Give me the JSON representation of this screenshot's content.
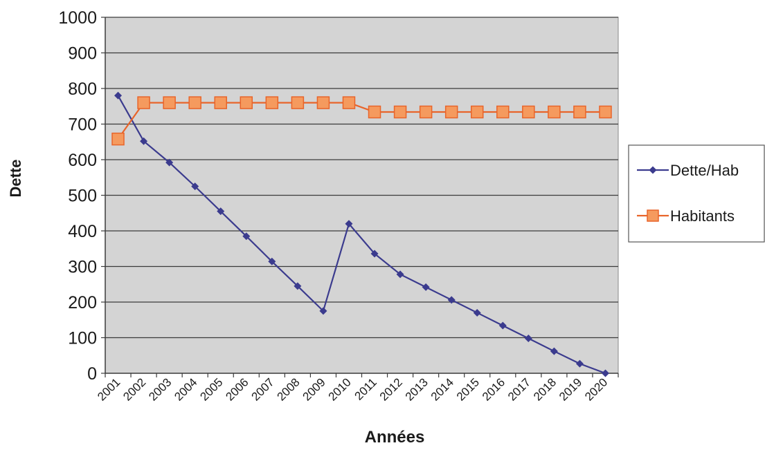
{
  "chart_data": {
    "type": "line",
    "title": "",
    "xlabel": "Années",
    "ylabel": "Dette",
    "ylim": [
      0,
      1000
    ],
    "yticks": [
      "0",
      "100",
      "200",
      "300",
      "400",
      "500",
      "600",
      "700",
      "800",
      "900",
      "1000"
    ],
    "categories": [
      "2001",
      "2002",
      "2003",
      "2004",
      "2005",
      "2006",
      "2007",
      "2008",
      "2009",
      "2010",
      "2011",
      "2012",
      "2013",
      "2014",
      "2015",
      "2016",
      "2017",
      "2018",
      "2019",
      "2020"
    ],
    "grid": true,
    "legend_position": "right",
    "plot_background": "#d4d4d4",
    "series": [
      {
        "name": "Dette/Hab",
        "color": "#3b3b8e",
        "marker": "diamond",
        "values": [
          780,
          652,
          592,
          525,
          455,
          385,
          314,
          245,
          175,
          420,
          336,
          278,
          242,
          206,
          170,
          134,
          98,
          62,
          27,
          0
        ]
      },
      {
        "name": "Habitants",
        "color": "#e8642a",
        "marker_fill": "#f59a5e",
        "marker": "square",
        "values": [
          658,
          760,
          760,
          760,
          760,
          760,
          760,
          760,
          760,
          760,
          734,
          734,
          734,
          734,
          734,
          734,
          734,
          734,
          734,
          734
        ]
      }
    ]
  }
}
